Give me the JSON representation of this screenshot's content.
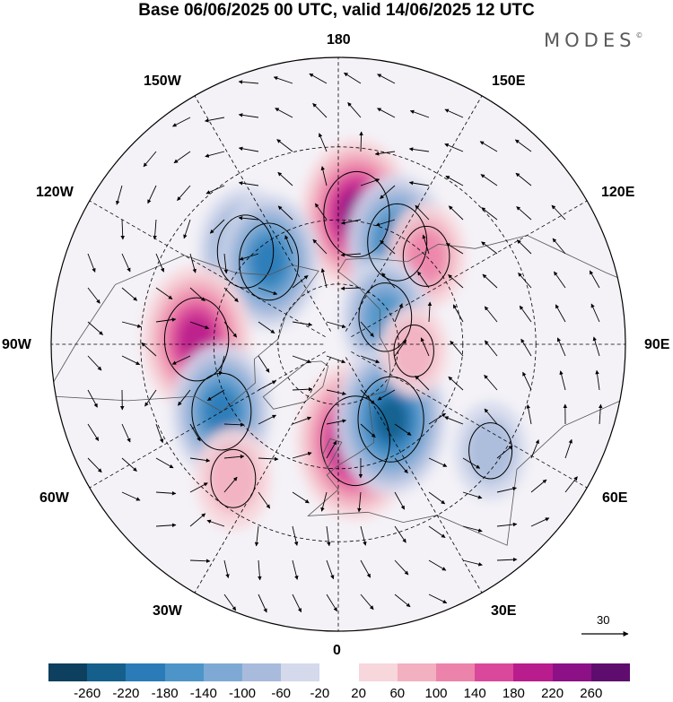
{
  "title": "Base 06/06/2025 00 UTC, valid 14/06/2025 12 UTC",
  "brand": "MODES",
  "brand_mark": "©",
  "longitude_labels": {
    "lon_180": "180",
    "lon_150e": "150E",
    "lon_120e": "120E",
    "lon_90e": "90E",
    "lon_60e": "60E",
    "lon_30e": "30E",
    "lon_0": "0",
    "lon_30w": "30W",
    "lon_60w": "60W",
    "lon_90w": "90W",
    "lon_120w": "120W",
    "lon_150w": "150W"
  },
  "colorbar": {
    "colors": [
      "#0d3f5e",
      "#145f8c",
      "#2b7bb8",
      "#4d95c8",
      "#7fa9d5",
      "#a9bbdc",
      "#d4d9ec",
      "#ffffff",
      "#f7d6dc",
      "#f2b0c0",
      "#ec83aa",
      "#d9489a",
      "#b91c8c",
      "#8c1186",
      "#5e0c6e"
    ],
    "ticks": [
      "-260",
      "-220",
      "-180",
      "-140",
      "-100",
      "-60",
      "-20",
      "20",
      "60",
      "100",
      "140",
      "180",
      "220",
      "260"
    ]
  },
  "reference_vector": {
    "value": "30"
  },
  "anomaly_centers": [
    {
      "lon": 172,
      "lat": 48,
      "value": 240
    },
    {
      "lon": 150,
      "lat": 52,
      "value": -200
    },
    {
      "lon": 135,
      "lat": 50,
      "value": 120
    },
    {
      "lon": 120,
      "lat": 72,
      "value": -160
    },
    {
      "lon": -135,
      "lat": 48,
      "value": -180
    },
    {
      "lon": -140,
      "lat": 55,
      "value": -200
    },
    {
      "lon": -92,
      "lat": 45,
      "value": 230
    },
    {
      "lon": -60,
      "lat": 47,
      "value": -200
    },
    {
      "lon": -38,
      "lat": 37,
      "value": 110
    },
    {
      "lon": 10,
      "lat": 58,
      "value": 260
    },
    {
      "lon": 35,
      "lat": 60,
      "value": -240
    },
    {
      "lon": 85,
      "lat": 65,
      "value": 80
    },
    {
      "lon": 55,
      "lat": 33,
      "value": -100
    }
  ]
}
